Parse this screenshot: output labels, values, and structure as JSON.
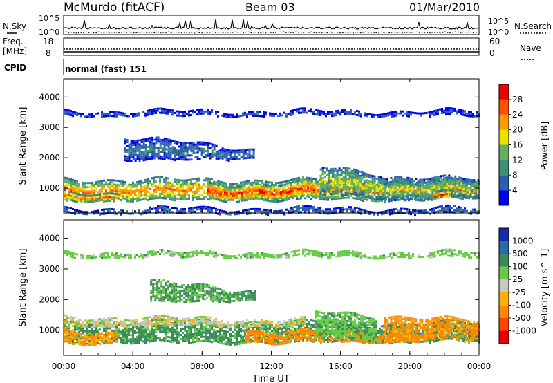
{
  "header": {
    "station": "McMurdo (fitACF)",
    "beam": "Beam 03",
    "date": "01/Mar/2010"
  },
  "strips": {
    "nsky_label": "N.Sky",
    "nsearch_label": "N.Search",
    "nsky_ticks": [
      "10^5",
      "10^0"
    ],
    "nsearch_ticks": [
      "10^5",
      "10^0"
    ],
    "freq_label_1": "Freq.",
    "freq_label_2": "[MHz]",
    "freq_ticks": [
      "18",
      "8"
    ],
    "nave_label": "Nave",
    "nave_ticks": [
      "60",
      "0"
    ],
    "cpid_label": "CPID",
    "cpid_value": "normal (fast) 151"
  },
  "colors": {
    "power_scale": [
      "#0000ee",
      "#2a5fb0",
      "#3e8f78",
      "#62b060",
      "#f0e000",
      "#ff9900",
      "#ff5000",
      "#ee0000"
    ],
    "velocity_scale": [
      "#ee0000",
      "#ff4400",
      "#ff8800",
      "#ffb000",
      "#c8c8c8",
      "#66cc44",
      "#3a8a5a",
      "#2a6aaa",
      "#1a2ab0"
    ]
  },
  "chart_data": [
    {
      "type": "heatmap",
      "name": "power-panel",
      "ylabel": "Slant Range [km]",
      "xlim": [
        0,
        24
      ],
      "ylim": [
        180,
        4600
      ],
      "yticks": [
        "1000",
        "2000",
        "3000",
        "4000"
      ],
      "colorbar_label": "Power [dB]",
      "colorbar_ticks": [
        "4",
        "8",
        "12",
        "16",
        "20",
        "24",
        "28"
      ],
      "colorbar_range": [
        0,
        32
      ],
      "bands": [
        {
          "name": "main-echo",
          "x0": 0.0,
          "x1": 24.0,
          "lo_start": 600,
          "lo_end": 640,
          "hi_start": 1300,
          "hi_end": 1250,
          "peak_power": 24
        },
        {
          "name": "core-enhancement",
          "x0": 8.3,
          "x1": 14.5,
          "lo_start": 620,
          "lo_end": 700,
          "hi_start": 1150,
          "hi_end": 1180,
          "peak_power": 30
        },
        {
          "name": "early-core",
          "x0": 0.0,
          "x1": 3.2,
          "lo_start": 580,
          "lo_end": 600,
          "hi_start": 900,
          "hi_end": 850,
          "peak_power": 26
        },
        {
          "name": "afternoon-patch",
          "x0": 14.8,
          "x1": 18.5,
          "lo_start": 800,
          "lo_end": 700,
          "hi_start": 1700,
          "hi_end": 1500,
          "peak_power": 18
        },
        {
          "name": "evening-echo",
          "x0": 18.5,
          "x1": 24.0,
          "lo_start": 600,
          "lo_end": 700,
          "hi_start": 1400,
          "hi_end": 1300,
          "peak_power": 16
        },
        {
          "name": "evening-core",
          "x0": 21.3,
          "x1": 22.3,
          "lo_start": 620,
          "lo_end": 650,
          "hi_start": 850,
          "hi_end": 850,
          "peak_power": 28
        },
        {
          "name": "far-range-scatter",
          "x0": 0.0,
          "x1": 24.0,
          "lo_start": 3400,
          "lo_end": 3400,
          "hi_start": 3550,
          "hi_end": 3550,
          "peak_power": 6
        },
        {
          "name": "mid-range-scatter",
          "x0": 3.5,
          "x1": 11.0,
          "lo_start": 1900,
          "lo_end": 2000,
          "hi_start": 2700,
          "hi_end": 2300,
          "peak_power": 8
        },
        {
          "name": "near-range-ground",
          "x0": 0.0,
          "x1": 24.0,
          "lo_start": 180,
          "lo_end": 180,
          "hi_start": 340,
          "hi_end": 340,
          "peak_power": 8
        }
      ]
    },
    {
      "type": "heatmap",
      "name": "velocity-panel",
      "xlabel": "Time UT",
      "ylabel": "Slant Range [km]",
      "xlim": [
        0,
        24
      ],
      "ylim": [
        180,
        4600
      ],
      "xticks": [
        "00:00",
        "04:00",
        "08:00",
        "12:00",
        "16:00",
        "20:00",
        "00:00"
      ],
      "yticks": [
        "1000",
        "2000",
        "3000",
        "4000"
      ],
      "colorbar_label": "Velocity [m s^-1]",
      "colorbar_ticks": [
        "-1000",
        "-500",
        "-100",
        "-25",
        "25",
        "100",
        "500",
        "1000"
      ],
      "bands": [
        {
          "name": "main-echo",
          "x0": 0.0,
          "x1": 24.0,
          "lo_start": 600,
          "lo_end": 640,
          "hi_start": 1300,
          "hi_end": 1250,
          "velocity": 150
        },
        {
          "name": "early-receding",
          "x0": 0.0,
          "x1": 3.0,
          "lo_start": 580,
          "lo_end": 600,
          "hi_start": 1000,
          "hi_end": 950,
          "velocity": -120
        },
        {
          "name": "gray-upper",
          "x0": 0.0,
          "x1": 14.0,
          "lo_start": 1150,
          "lo_end": 1150,
          "hi_start": 1450,
          "hi_end": 1350,
          "velocity": 0
        },
        {
          "name": "orange-late",
          "x0": 10.5,
          "x1": 20.5,
          "lo_start": 600,
          "lo_end": 650,
          "hi_start": 1000,
          "hi_end": 900,
          "velocity": -200
        },
        {
          "name": "afternoon-mixed",
          "x0": 14.5,
          "x1": 18.0,
          "lo_start": 800,
          "lo_end": 700,
          "hi_start": 1600,
          "hi_end": 1500,
          "velocity": 80
        },
        {
          "name": "evening-orange",
          "x0": 18.5,
          "x1": 24.0,
          "lo_start": 650,
          "lo_end": 700,
          "hi_start": 1500,
          "hi_end": 1300,
          "velocity": -150
        },
        {
          "name": "far-range-scatter",
          "x0": 0.0,
          "x1": 24.0,
          "lo_start": 3400,
          "lo_end": 3400,
          "hi_start": 3550,
          "hi_end": 3550,
          "velocity": 60
        },
        {
          "name": "mid-range-scatter",
          "x0": 5.0,
          "x1": 11.0,
          "lo_start": 1900,
          "lo_end": 2000,
          "hi_start": 2600,
          "hi_end": 2300,
          "velocity": 120
        }
      ]
    }
  ]
}
